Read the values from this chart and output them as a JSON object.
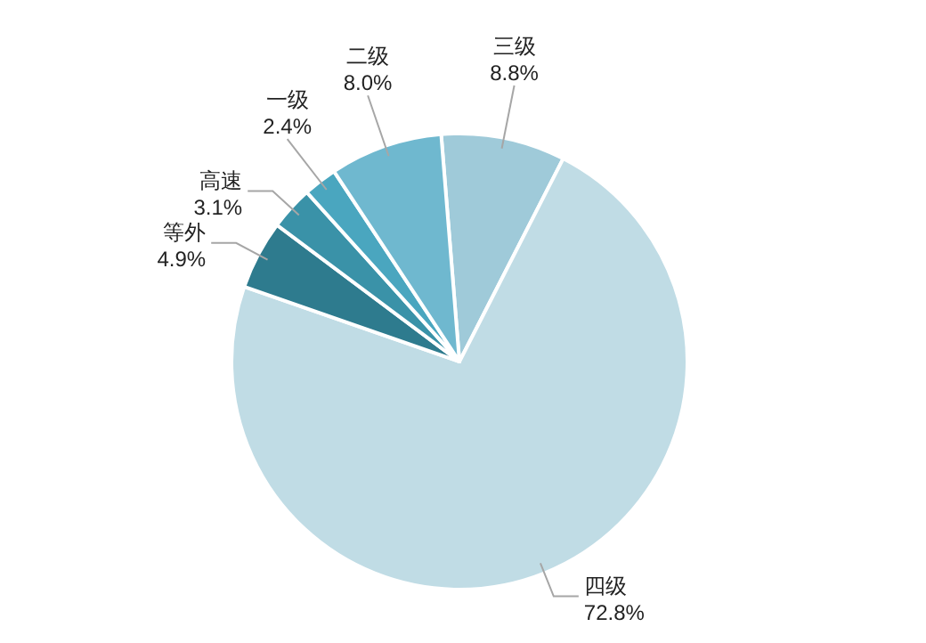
{
  "chart_data": {
    "type": "pie",
    "categories": [
      "三级",
      "四级",
      "等外",
      "高速",
      "一级",
      "二级"
    ],
    "values": [
      8.8,
      72.8,
      4.9,
      3.1,
      2.4,
      8.0
    ],
    "value_labels": [
      "8.8%",
      "72.8%",
      "4.9%",
      "3.1%",
      "2.4%",
      "8.0%"
    ],
    "colors": [
      "#9fcad9",
      "#c0dce5",
      "#2e7b8e",
      "#3a92a8",
      "#4aa6bf",
      "#6fb8cf"
    ]
  }
}
